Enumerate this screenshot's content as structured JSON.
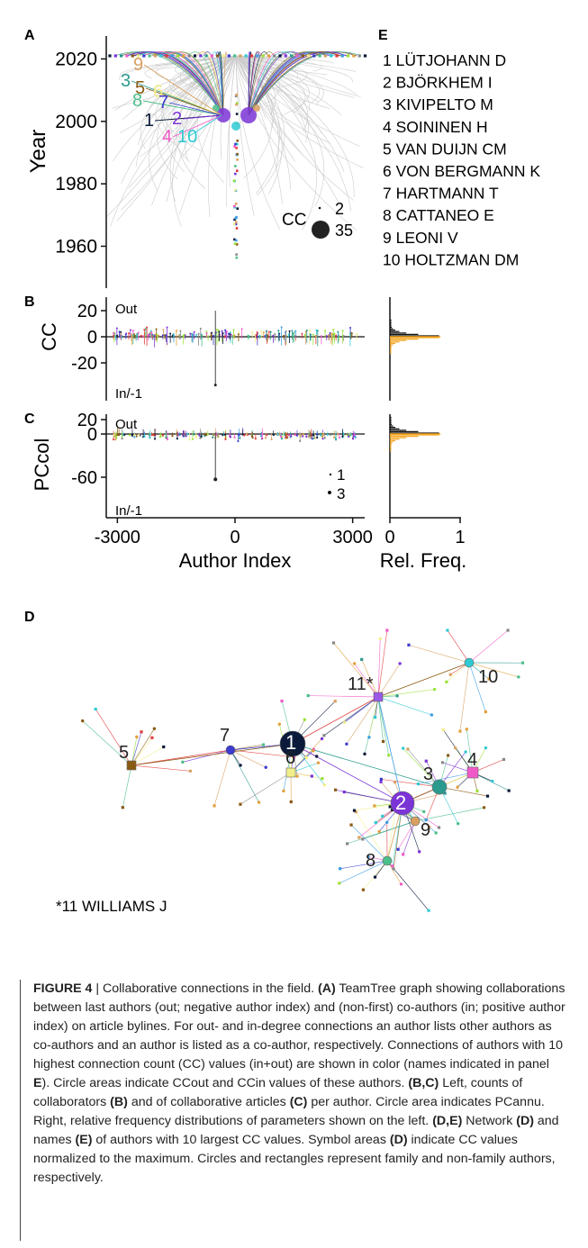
{
  "panels": {
    "A": "A",
    "B": "B",
    "C": "C",
    "D": "D",
    "E": "E"
  },
  "colors": {
    "top10": [
      "#0b1a3a",
      "#7b34d6",
      "#2b9a8e",
      "#f05ac8",
      "#8a5a12",
      "#f2ee8a",
      "#3b3bd0",
      "#4cbf8a",
      "#d8a060",
      "#2fcad4"
    ],
    "gray_tree": "#c8c8c8",
    "orange": "#f5a623"
  },
  "chart_data": [
    {
      "panel": "A",
      "type": "scatter",
      "title": "",
      "ylabel": "Year",
      "yticks": [
        1960,
        1980,
        2000,
        2020
      ],
      "ylim": [
        1953,
        2023
      ],
      "legend": {
        "title": "CC",
        "entries": [
          {
            "label": "2",
            "value": 2
          },
          {
            "label": "35",
            "value": 35
          }
        ]
      },
      "top_labels": [
        {
          "n": "9",
          "color_index": 8
        },
        {
          "n": "3",
          "color_index": 2
        },
        {
          "n": "5",
          "color_index": 4
        },
        {
          "n": "6",
          "color_index": 5
        },
        {
          "n": "8",
          "color_index": 7
        },
        {
          "n": "7",
          "color_index": 6
        },
        {
          "n": "1",
          "color_index": 0
        },
        {
          "n": "2",
          "color_index": 1
        },
        {
          "n": "4",
          "color_index": 3
        },
        {
          "n": "10",
          "color_index": 9
        }
      ]
    },
    {
      "panel": "B",
      "type": "scatter",
      "ylabel": "CC",
      "yticks": [
        20,
        0,
        -20
      ],
      "ylim": [
        -40,
        25
      ],
      "annotations": [
        "Out",
        "In/-1"
      ],
      "xlim": [
        -3300,
        3300
      ]
    },
    {
      "panel": "C",
      "type": "scatter",
      "ylabel": "PCcol",
      "yticks": [
        20,
        0,
        -60
      ],
      "ylim": [
        -68,
        22
      ],
      "annotations": [
        "Out",
        "In/-1"
      ],
      "size_legend": [
        {
          "label": "1",
          "value": 1
        },
        {
          "label": "3",
          "value": 3
        }
      ],
      "xlabel": "Author Index",
      "xticks": [
        -3000,
        0,
        3000
      ],
      "xlim": [
        -3300,
        3300
      ]
    },
    {
      "panel": "B/C right",
      "type": "bar",
      "xlabel": "Rel. Freq.",
      "xticks": [
        0,
        1
      ],
      "xlim": [
        0,
        1
      ]
    }
  ],
  "authors": [
    {
      "n": "1",
      "name": "LÜTJOHANN D"
    },
    {
      "n": "2",
      "name": "BJÖRKHEM I"
    },
    {
      "n": "3",
      "name": "KIVIPELTO M"
    },
    {
      "n": "4",
      "name": "SOININEN H"
    },
    {
      "n": "5",
      "name": "VAN DUIJN CM"
    },
    {
      "n": "6",
      "name": "VON BERGMANN K"
    },
    {
      "n": "7",
      "name": "HARTMANN T"
    },
    {
      "n": "8",
      "name": "CATTANEO E"
    },
    {
      "n": "9",
      "name": "LEONI V"
    },
    {
      "n": "10",
      "name": "HOLTZMAN DM"
    }
  ],
  "network": {
    "footnote": "*11 WILLIAMS J",
    "labels": [
      "1",
      "2",
      "3",
      "4",
      "5",
      "6",
      "7",
      "8",
      "9",
      "10",
      "11*"
    ]
  },
  "caption": {
    "label": "FIGURE 4",
    "separator": "|",
    "text_parts": [
      {
        "t": " Collaborative connections in the field. ",
        "b": false
      },
      {
        "t": "(A)",
        "b": true
      },
      {
        "t": " TeamTree graph showing collaborations between last authors (out; negative author index) and (non-first) co-authors (in; positive author index) on article bylines. For out- and in-degree connections an author lists other authors as co-authors and an author is listed as a co-author, respectively. Connections of authors with 10 highest connection count (CC) values (in+out) are shown in color (names indicated in panel ",
        "b": false
      },
      {
        "t": "E",
        "b": true
      },
      {
        "t": "). Circle areas indicate CCout and CCin values of these authors. ",
        "b": false
      },
      {
        "t": "(B,C)",
        "b": true
      },
      {
        "t": " Left, counts of collaborators ",
        "b": false
      },
      {
        "t": "(B)",
        "b": true
      },
      {
        "t": " and of collaborative articles ",
        "b": false
      },
      {
        "t": "(C)",
        "b": true
      },
      {
        "t": " per author. Circle area indicates PCannu. Right, relative frequency distributions of parameters shown on the left. ",
        "b": false
      },
      {
        "t": "(D,E)",
        "b": true
      },
      {
        "t": " Network ",
        "b": false
      },
      {
        "t": "(D)",
        "b": true
      },
      {
        "t": " and names ",
        "b": false
      },
      {
        "t": "(E)",
        "b": true
      },
      {
        "t": " of authors with 10 largest CC values. Symbol areas ",
        "b": false
      },
      {
        "t": "(D)",
        "b": true
      },
      {
        "t": " indicate CC values normalized to the maximum. Circles and rectangles represent family and non-family authors, respectively.",
        "b": false
      }
    ]
  }
}
